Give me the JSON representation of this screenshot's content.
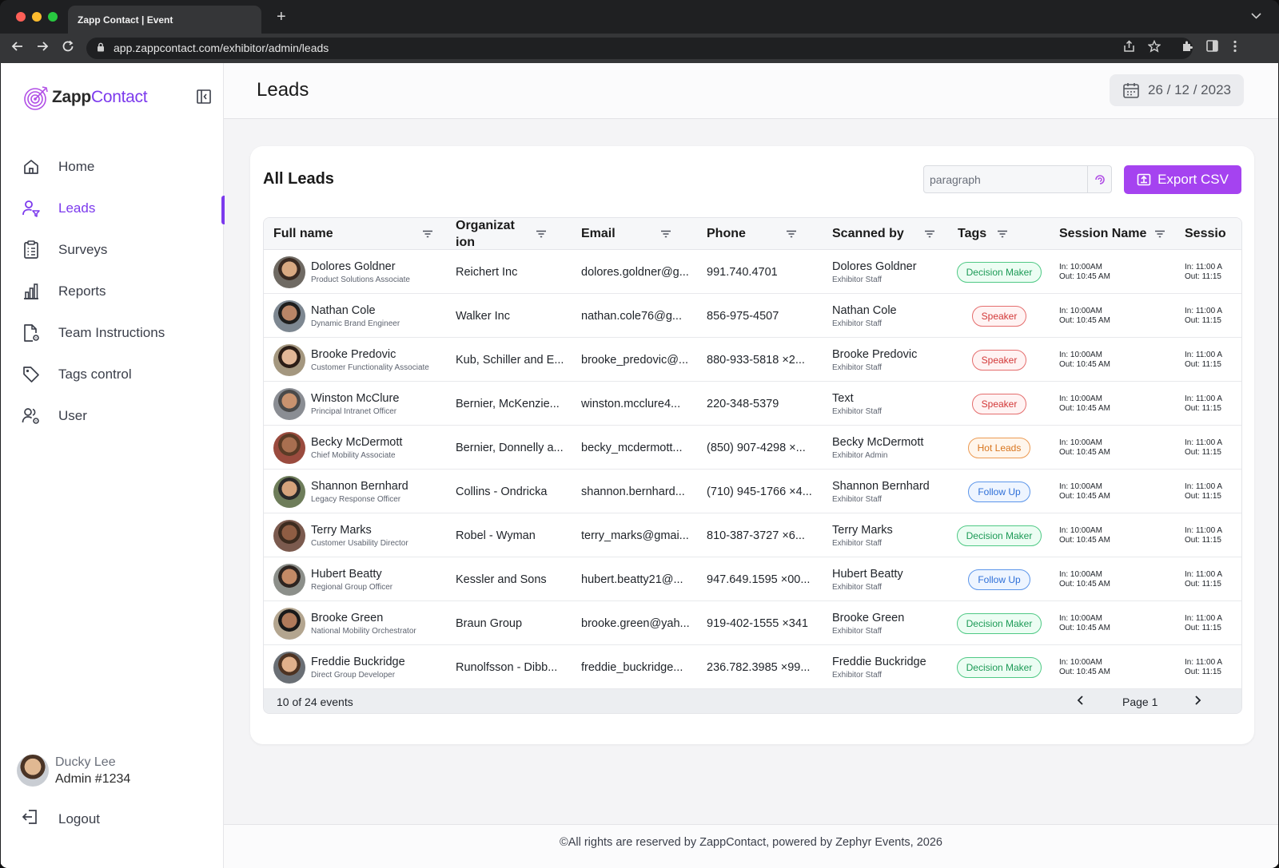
{
  "browser": {
    "tab_title": "Zapp Contact | Event",
    "url": "app.zappcontact.com/exhibitor/admin/leads"
  },
  "sidebar": {
    "logo_bold": "Zapp",
    "logo_light": "Contact",
    "items": [
      {
        "label": "Home",
        "icon": "home-icon",
        "active": false
      },
      {
        "label": "Leads",
        "icon": "user-filter-icon",
        "active": true
      },
      {
        "label": "Surveys",
        "icon": "clipboard-icon",
        "active": false
      },
      {
        "label": "Reports",
        "icon": "bar-chart-icon",
        "active": false
      },
      {
        "label": "Team Instructions",
        "icon": "document-gear-icon",
        "active": false
      },
      {
        "label": "Tags control",
        "icon": "tag-icon",
        "active": false
      },
      {
        "label": "User",
        "icon": "users-gear-icon",
        "active": false
      }
    ],
    "user": {
      "name": "Ducky Lee",
      "role": "Admin #1234"
    },
    "logout_label": "Logout"
  },
  "header": {
    "title": "Leads",
    "date": "26 / 12 / 2023"
  },
  "leads": {
    "title": "All Leads",
    "search_value": "paragraph",
    "export_label": "Export CSV",
    "columns": [
      "Full name",
      "Organizat ion",
      "Email",
      "Phone",
      "Scanned by",
      "Tags",
      "Session Name",
      "Sessio"
    ],
    "rows": [
      {
        "name": "Dolores Goldner",
        "title": "Product Solutions Associate",
        "org": "Reichert Inc",
        "email": "dolores.goldner@g...",
        "phone": "991.740.4701",
        "scanned": "Dolores Goldner",
        "scanned_role": "Exhibitor Staff",
        "tag": "Decision Maker",
        "tag_style": "green",
        "sess_in": "In: 10:00AM",
        "sess_out": "Out: 10:45 AM",
        "sess2_in": "In: 11:00 A",
        "sess2_out": "Out: 11:15"
      },
      {
        "name": "Nathan Cole",
        "title": "Dynamic Brand Engineer",
        "org": "Walker Inc",
        "email": "nathan.cole76@g...",
        "phone": "856-975-4507",
        "scanned": "Nathan Cole",
        "scanned_role": "Exhibitor Staff",
        "tag": "Speaker",
        "tag_style": "red",
        "sess_in": "In: 10:00AM",
        "sess_out": "Out: 10:45 AM",
        "sess2_in": "In: 11:00 A",
        "sess2_out": "Out: 11:15"
      },
      {
        "name": "Brooke Predovic",
        "title": "Customer Functionality Associate",
        "org": "Kub, Schiller and E...",
        "email": "brooke_predovic@...",
        "phone": "880-933-5818 ×2...",
        "scanned": "Brooke Predovic",
        "scanned_role": "Exhibitor Staff",
        "tag": "Speaker",
        "tag_style": "red",
        "sess_in": "In: 10:00AM",
        "sess_out": "Out: 10:45 AM",
        "sess2_in": "In: 11:00 A",
        "sess2_out": "Out: 11:15"
      },
      {
        "name": "Winston McClure",
        "title": "Principal Intranet Officer",
        "org": "Bernier, McKenzie...",
        "email": "winston.mcclure4...",
        "phone": "220-348-5379",
        "scanned": "Text",
        "scanned_role": "Exhibitor Staff",
        "tag": "Speaker",
        "tag_style": "red",
        "sess_in": "In: 10:00AM",
        "sess_out": "Out: 10:45 AM",
        "sess2_in": "In: 11:00 A",
        "sess2_out": "Out: 11:15"
      },
      {
        "name": "Becky McDermott",
        "title": "Chief Mobility Associate",
        "org": "Bernier, Donnelly a...",
        "email": "becky_mcdermott...",
        "phone": "(850) 907-4298 ×...",
        "scanned": "Becky McDermott",
        "scanned_role": "Exhibitor Admin",
        "tag": "Hot Leads",
        "tag_style": "orange",
        "sess_in": "In: 10:00AM",
        "sess_out": "Out: 10:45 AM",
        "sess2_in": "In: 11:00 A",
        "sess2_out": "Out: 11:15"
      },
      {
        "name": "Shannon Bernhard",
        "title": "Legacy Response Officer",
        "org": "Collins - Ondricka",
        "email": "shannon.bernhard...",
        "phone": "(710) 945-1766 ×4...",
        "scanned": "Shannon Bernhard",
        "scanned_role": "Exhibitor Staff",
        "tag": "Follow Up",
        "tag_style": "blue",
        "sess_in": "In: 10:00AM",
        "sess_out": "Out: 10:45 AM",
        "sess2_in": "In: 11:00 A",
        "sess2_out": "Out: 11:15"
      },
      {
        "name": "Terry Marks",
        "title": "Customer Usability Director",
        "org": "Robel - Wyman",
        "email": "terry_marks@gmai...",
        "phone": "810-387-3727 ×6...",
        "scanned": "Terry Marks",
        "scanned_role": "Exhibitor Staff",
        "tag": "Decision Maker",
        "tag_style": "green",
        "sess_in": "In: 10:00AM",
        "sess_out": "Out: 10:45 AM",
        "sess2_in": "In: 11:00 A",
        "sess2_out": "Out: 11:15"
      },
      {
        "name": "Hubert Beatty",
        "title": "Regional Group Officer",
        "org": "Kessler and Sons",
        "email": "hubert.beatty21@...",
        "phone": "947.649.1595 ×00...",
        "scanned": "Hubert Beatty",
        "scanned_role": "Exhibitor Staff",
        "tag": "Follow Up",
        "tag_style": "blue",
        "sess_in": "In: 10:00AM",
        "sess_out": "Out: 10:45 AM",
        "sess2_in": "In: 11:00 A",
        "sess2_out": "Out: 11:15"
      },
      {
        "name": "Brooke Green",
        "title": "National Mobility Orchestrator",
        "org": "Braun Group",
        "email": "brooke.green@yah...",
        "phone": "919-402-1555 ×341",
        "scanned": "Brooke Green",
        "scanned_role": "Exhibitor Staff",
        "tag": "Decision Maker",
        "tag_style": "green",
        "sess_in": "In: 10:00AM",
        "sess_out": "Out: 10:45 AM",
        "sess2_in": "In: 11:00 A",
        "sess2_out": "Out: 11:15"
      },
      {
        "name": "Freddie Buckridge",
        "title": "Direct Group Developer",
        "org": "Runolfsson - Dibb...",
        "email": "freddie_buckridge...",
        "phone": "236.782.3985 ×99...",
        "scanned": "Freddie Buckridge",
        "scanned_role": "Exhibitor Staff",
        "tag": "Decision Maker",
        "tag_style": "green",
        "sess_in": "In: 10:00AM",
        "sess_out": "Out: 10:45 AM",
        "sess2_in": "In: 11:00 A",
        "sess2_out": "Out: 11:15"
      }
    ],
    "footer_count": "10 of 24 events",
    "page_label": "Page 1"
  },
  "footer": {
    "text": "©All rights are reserved by ZappContact, powered by Zephyr Events, 2026"
  },
  "colors": {
    "accent": "#7c3aed",
    "export_button": "#a543f0"
  }
}
